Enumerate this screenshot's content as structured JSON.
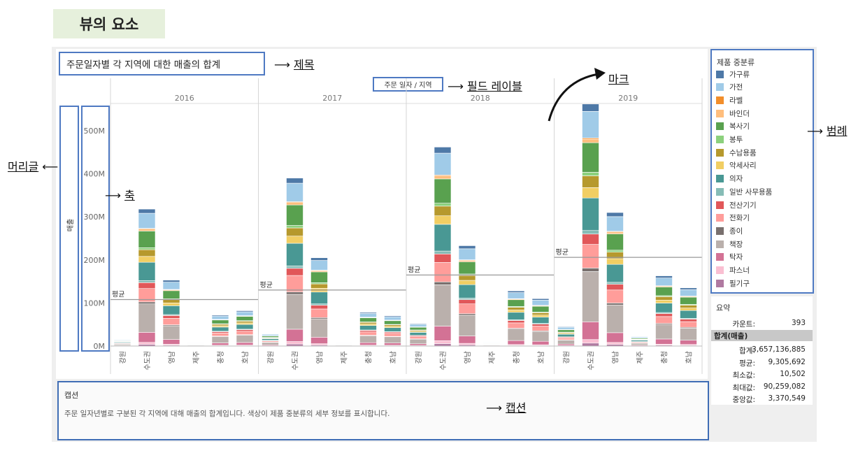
{
  "page_title": "뷰의 요소",
  "view": {
    "title": "주문일자별 각 지역에 대한 매출의 합계",
    "field_label": "주문 일자 / 지역",
    "axis_label": "매출"
  },
  "annotations": {
    "title": "제목",
    "field_label": "필드 레이블",
    "mark": "마크",
    "legend": "범례",
    "header": "머리글",
    "axis": "축",
    "caption": "캡션"
  },
  "caption": {
    "title": "캡션",
    "text": "주문 일자년별로 구분된 각 지역에 대해 매출의 합계입니다. 색상이 제품 중분류의 세부 정보를 표시합니다."
  },
  "legend": {
    "title": "제품 중분류",
    "items": [
      {
        "label": "가구류",
        "color": "#4e79a7"
      },
      {
        "label": "가전",
        "color": "#a0cbe8"
      },
      {
        "label": "라벨",
        "color": "#f28e2b"
      },
      {
        "label": "바인더",
        "color": "#ffbe7d"
      },
      {
        "label": "복사기",
        "color": "#59a14f"
      },
      {
        "label": "봉투",
        "color": "#8cd17d"
      },
      {
        "label": "수납용품",
        "color": "#b6992d"
      },
      {
        "label": "악세사리",
        "color": "#f1ce63"
      },
      {
        "label": "의자",
        "color": "#499894"
      },
      {
        "label": "일반 사무용품",
        "color": "#86bcb6"
      },
      {
        "label": "전산기기",
        "color": "#e15759"
      },
      {
        "label": "전화기",
        "color": "#ff9d9a"
      },
      {
        "label": "종이",
        "color": "#79706e"
      },
      {
        "label": "책장",
        "color": "#bab0ac"
      },
      {
        "label": "탁자",
        "color": "#d37295"
      },
      {
        "label": "파스너",
        "color": "#fabfd2"
      },
      {
        "label": "필기구",
        "color": "#b07aa1"
      }
    ]
  },
  "summary": {
    "title": "요약",
    "count_label": "카운트:",
    "count_value": "393",
    "section_label": "합계(매출)",
    "rows": [
      {
        "k": "합계:",
        "v": "3,657,136,885"
      },
      {
        "k": "평균:",
        "v": "9,305,692"
      },
      {
        "k": "최소값:",
        "v": "10,502"
      },
      {
        "k": "최대값:",
        "v": "90,259,082"
      },
      {
        "k": "중앙값:",
        "v": "3,370,549"
      }
    ]
  },
  "chart_data": {
    "type": "bar",
    "stacked": true,
    "title": "주문일자별 각 지역에 대한 매출의 합계",
    "ylabel": "매출",
    "ylim": [
      0,
      560000000
    ],
    "yticks": [
      "0M",
      "100M",
      "200M",
      "300M",
      "400M",
      "500M"
    ],
    "reference_line_label": "평균",
    "regions": [
      "강원",
      "수도권",
      "영남",
      "제주",
      "충청",
      "호남"
    ],
    "panels": [
      {
        "year": "2016",
        "totals": [
          15000000,
          318000000,
          153000000,
          8000000,
          72000000,
          82000000
        ],
        "average": 108000000
      },
      {
        "year": "2017",
        "totals": [
          28000000,
          390000000,
          205000000,
          8000000,
          78000000,
          70000000
        ],
        "average": 130000000
      },
      {
        "year": "2018",
        "totals": [
          52000000,
          462000000,
          233000000,
          9000000,
          128000000,
          110000000
        ],
        "average": 165000000
      },
      {
        "year": "2019",
        "totals": [
          45000000,
          562000000,
          310000000,
          22000000,
          163000000,
          135000000
        ],
        "average": 206000000
      }
    ]
  }
}
